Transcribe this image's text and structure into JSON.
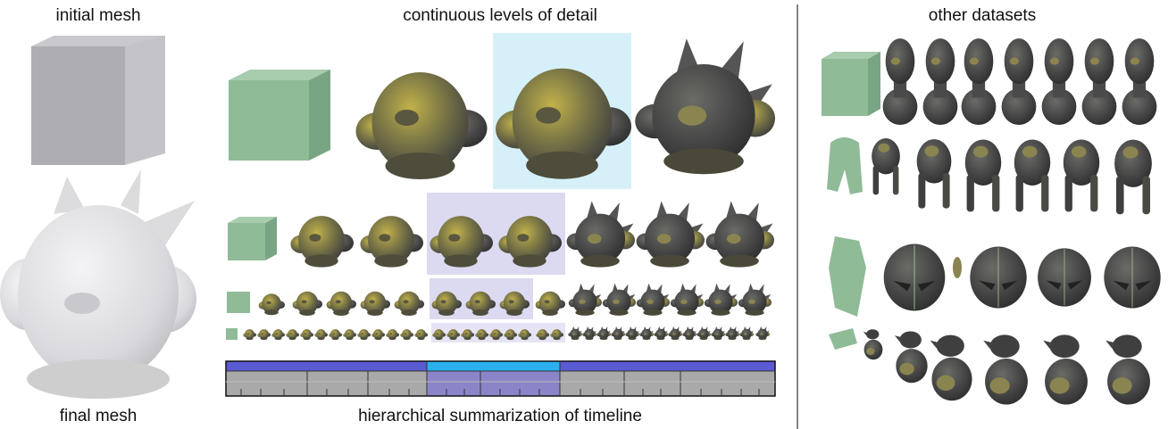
{
  "labels": {
    "initial": "initial mesh",
    "final": "final mesh",
    "lod": "continuous levels of detail",
    "timeline": "hierarchical summarization of timeline",
    "other": "other datasets"
  }
}
